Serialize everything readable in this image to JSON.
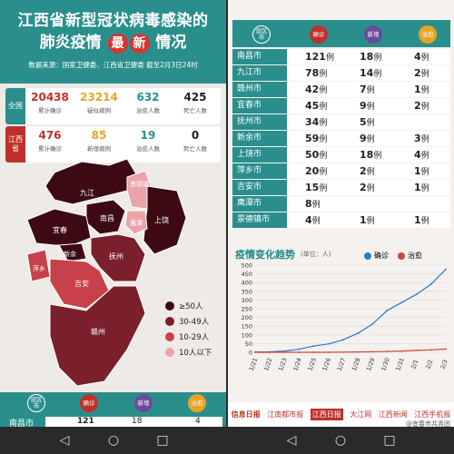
{
  "title_line1": "江西省新型冠状病毒感染的",
  "title_line2_a": "肺炎疫情",
  "title_badge1": "最",
  "title_badge2": "新",
  "title_line2_b": "情况",
  "source": "数据来源：国家卫健委、江西省卫健委   截至2月3日24时",
  "national": {
    "label": "全国",
    "stats": [
      {
        "num": "20438",
        "label": "累计确诊",
        "color": "#c0302b"
      },
      {
        "num": "23214",
        "label": "疑似病例",
        "color": "#e8a423"
      },
      {
        "num": "632",
        "label": "治愈人数",
        "color": "#2a8f8c"
      },
      {
        "num": "425",
        "label": "死亡人数",
        "color": "#222222"
      }
    ]
  },
  "province": {
    "label": "江西省",
    "stats": [
      {
        "num": "476",
        "label": "累计确诊",
        "color": "#c0302b"
      },
      {
        "num": "85",
        "label": "新增病例",
        "color": "#e8a423"
      },
      {
        "num": "19",
        "label": "治愈人数",
        "color": "#2a8f8c"
      },
      {
        "num": "0",
        "label": "死亡人数",
        "color": "#222222"
      }
    ]
  },
  "map_labels": [
    "九江",
    "南昌",
    "景德镇",
    "上饶",
    "鹰潭",
    "宜春",
    "新余",
    "萍乡",
    "抚州",
    "吉安",
    "赣州"
  ],
  "legend": [
    "≥50人",
    "30-49人",
    "10-29人",
    "10人以下"
  ],
  "legend_colors": [
    "#3d0a14",
    "#7a1f2b",
    "#c8404a",
    "#eba3aa"
  ],
  "table_header": {
    "area": "设区市",
    "confirmed": "确诊",
    "new": "新增",
    "cured": "治愈"
  },
  "rows": [
    {
      "city": "南昌市",
      "confirmed": "121",
      "new": "18",
      "cured": "4"
    },
    {
      "city": "九江市",
      "confirmed": "78",
      "new": "14",
      "cured": "2"
    },
    {
      "city": "赣州市",
      "confirmed": "42",
      "new": "7",
      "cured": "1"
    },
    {
      "city": "宜春市",
      "confirmed": "45",
      "new": "9",
      "cured": "2"
    },
    {
      "city": "抚州市",
      "confirmed": "34",
      "new": "5",
      "cured": ""
    },
    {
      "city": "新余市",
      "confirmed": "59",
      "new": "9",
      "cured": "3"
    },
    {
      "city": "上饶市",
      "confirmed": "50",
      "new": "18",
      "cured": "4"
    },
    {
      "city": "萍乡市",
      "confirmed": "20",
      "new": "2",
      "cured": "1"
    },
    {
      "city": "吉安市",
      "confirmed": "15",
      "new": "2",
      "cured": "1"
    },
    {
      "city": "鹰潭市",
      "confirmed": "8",
      "new": "",
      "cured": ""
    },
    {
      "city": "景德镇市",
      "confirmed": "4",
      "new": "1",
      "cured": "1"
    }
  ],
  "unit": "例",
  "trend": {
    "title": "疫情变化趋势",
    "unit": "(单位：人)",
    "legend_confirmed": "确诊",
    "legend_cured": "治愈"
  },
  "bottom_row": {
    "city": "南昌市",
    "confirmed": "121",
    "new": "18",
    "cured": "4"
  },
  "footer_logos": [
    "信息日报",
    "江南都市报",
    "江西日报",
    "大江网",
    "江西新闻",
    "江西手机报"
  ],
  "watermark": "@宜春市共青团",
  "colors": {
    "teal": "#2a8f8c",
    "red": "#c0302b",
    "purple": "#6a4a9a",
    "orange": "#e8a423"
  },
  "chart_data": {
    "type": "line",
    "x": [
      "1/21",
      "1/22",
      "1/23",
      "1/24",
      "1/25",
      "1/26",
      "1/27",
      "1/28",
      "1/29",
      "1/30",
      "1/31",
      "2/1",
      "2/2",
      "2/3"
    ],
    "series": [
      {
        "name": "确诊",
        "values": [
          2,
          3,
          7,
          18,
          36,
          48,
          72,
          109,
          162,
          240,
          286,
          333,
          391,
          476
        ]
      },
      {
        "name": "治愈",
        "values": [
          0,
          0,
          0,
          0,
          0,
          0,
          1,
          2,
          3,
          5,
          7,
          11,
          14,
          19
        ]
      }
    ],
    "ylim": [
      0,
      500
    ],
    "yticks": [
      0,
      50,
      100,
      150,
      200,
      250,
      300,
      350,
      400,
      450,
      500
    ]
  }
}
